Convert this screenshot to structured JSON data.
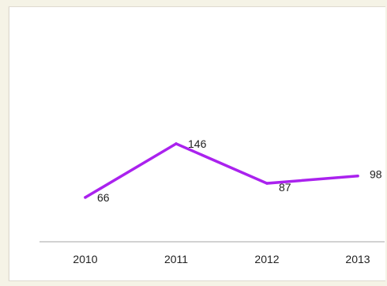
{
  "chart_data": {
    "type": "line",
    "title": "",
    "xlabel": "",
    "ylabel": "",
    "categories": [
      "2010",
      "2011",
      "2012",
      "2013"
    ],
    "series": [
      {
        "values": [
          66,
          146,
          87,
          98
        ],
        "color": "#aa22ee"
      }
    ],
    "grid": false,
    "legend": "none",
    "data_labels": true
  }
}
